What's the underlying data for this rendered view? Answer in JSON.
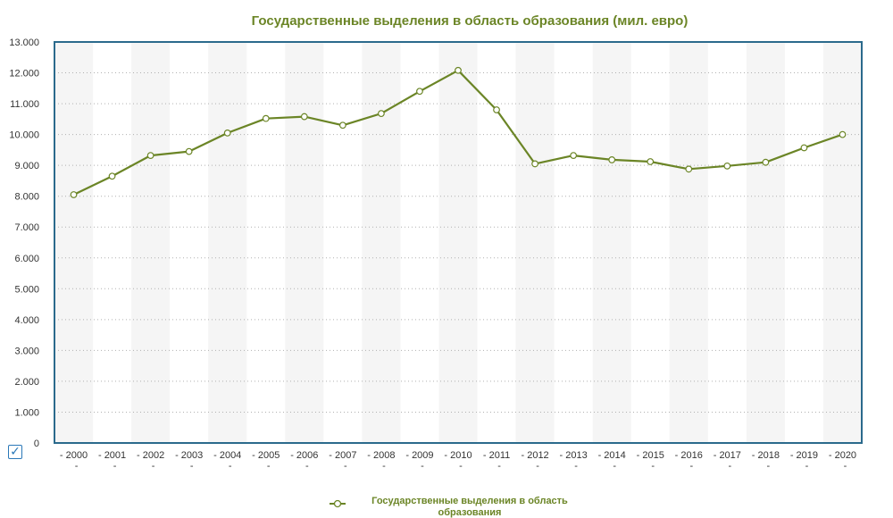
{
  "chart_data": {
    "type": "line",
    "title": "Государственные выделения в область образования (мил. евро)",
    "categories": [
      "2000",
      "2001",
      "2002",
      "2003",
      "2004",
      "2005",
      "2006",
      "2007",
      "2008",
      "2009",
      "2010",
      "2011",
      "2012",
      "2013",
      "2014",
      "2015",
      "2016",
      "2017",
      "2018",
      "2019",
      "2020"
    ],
    "x_tick_labels": [
      "- 2000 -",
      "- 2001 -",
      "- 2002 -",
      "- 2003 -",
      "- 2004 -",
      "- 2005 -",
      "- 2006 -",
      "- 2007 -",
      "- 2008 -",
      "- 2009 -",
      "- 2010 -",
      "- 2011 -",
      "- 2012 -",
      "- 2013 -",
      "- 2014 -",
      "- 2015 -",
      "- 2016 -",
      "- 2017 -",
      "- 2018 -",
      "- 2019 -",
      "- 2020 -"
    ],
    "series": [
      {
        "name": "Государственные выделения в область образования",
        "values": [
          8050,
          8650,
          9320,
          9450,
          10050,
          10520,
          10580,
          10300,
          10680,
          11400,
          12080,
          10800,
          9050,
          9320,
          9180,
          9120,
          8880,
          8980,
          9100,
          9570,
          10000
        ]
      }
    ],
    "ylim": [
      0,
      13000
    ],
    "yticks": [
      0,
      1000,
      2000,
      3000,
      4000,
      5000,
      6000,
      7000,
      8000,
      9000,
      10000,
      11000,
      12000,
      13000
    ],
    "ytick_labels": [
      "0",
      "1.000",
      "2.000",
      "3.000",
      "4.000",
      "5.000",
      "6.000",
      "7.000",
      "8.000",
      "9.000",
      "10.000",
      "11.000",
      "12.000",
      "13.000"
    ],
    "grid": true,
    "legend_position": "bottom-center",
    "colors": {
      "line": "#6b8526",
      "title": "#6b8526",
      "frame": "#2b6a8c",
      "band": "#f5f5f5",
      "grid": "#b0b0b0",
      "marker_fill": "#ffffff"
    }
  },
  "legend": {
    "line1": "Государственные выделения в область",
    "line2": "образования"
  },
  "controls": {
    "checkbox_icon": "check-icon"
  }
}
